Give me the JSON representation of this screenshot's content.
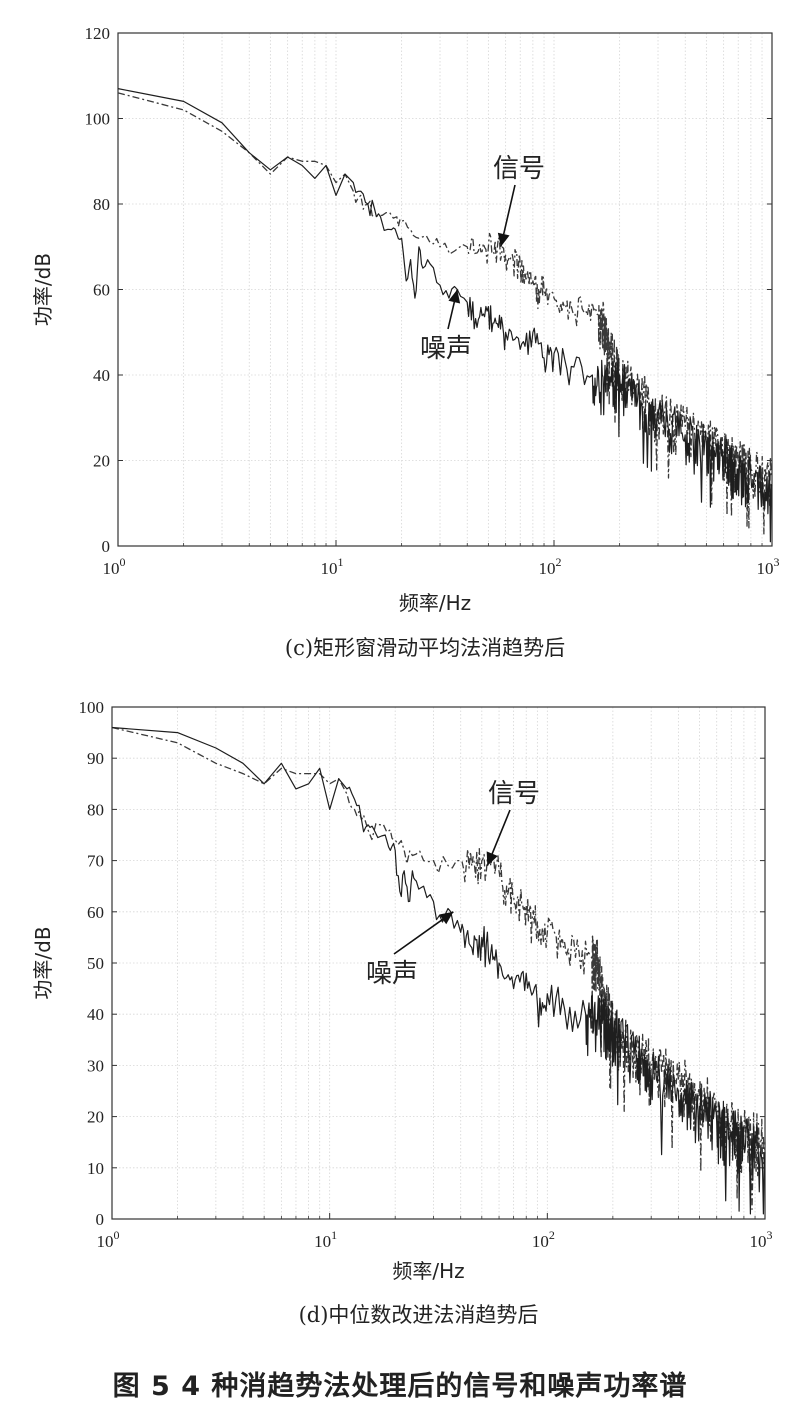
{
  "figure_caption": "图 5   4 种消趋势法处理后的信号和噪声功率谱",
  "chart_data": [
    {
      "type": "line",
      "caption": "(c)矩形窗滑动平均法消趋势后",
      "xlabel": "频率/Hz",
      "ylabel": "功率/dB",
      "xscale": "log",
      "xlim": [
        1,
        1000
      ],
      "ylim": [
        0,
        120
      ],
      "yticks": [
        0,
        20,
        40,
        60,
        80,
        100,
        120
      ],
      "xticks": [
        {
          "base": "10",
          "exp": "0"
        },
        {
          "base": "10",
          "exp": "1"
        },
        {
          "base": "10",
          "exp": "2"
        },
        {
          "base": "10",
          "exp": "3"
        }
      ],
      "grid": true,
      "annotations": [
        {
          "text": "信号",
          "pointTo": [
            57,
            70
          ]
        },
        {
          "text": "噪声",
          "pointTo": [
            36,
            60
          ]
        }
      ],
      "series": [
        {
          "style": "dashdot",
          "x": [
            1,
            2,
            3,
            4,
            5,
            6,
            7,
            8,
            9,
            10,
            11,
            12,
            13,
            14,
            15,
            17,
            19,
            20,
            22,
            24,
            27,
            30,
            35,
            40,
            45,
            50,
            55,
            60,
            65,
            70,
            75,
            80,
            85,
            90,
            100,
            110,
            120,
            140,
            160,
            170,
            180,
            200,
            250,
            300,
            400,
            500,
            600,
            700,
            800,
            1000
          ],
          "y": [
            106,
            102,
            97,
            92,
            87,
            91,
            90,
            90,
            89,
            85,
            87,
            83,
            82,
            80,
            77,
            78,
            77,
            76,
            74,
            72,
            71,
            70,
            69,
            70,
            69,
            70,
            70,
            68,
            67,
            66,
            63,
            62,
            60,
            60,
            58,
            57,
            56,
            55,
            54,
            52,
            47,
            40,
            36,
            32,
            28,
            25,
            22,
            20,
            18,
            16
          ]
        },
        {
          "style": "solid",
          "x": [
            1,
            2,
            3,
            4,
            5,
            6,
            7,
            8,
            9,
            10,
            11,
            12,
            13,
            14,
            15,
            16,
            18,
            19,
            20,
            21,
            22,
            23,
            24,
            25,
            27,
            30,
            33,
            36,
            40,
            45,
            50,
            55,
            60,
            70,
            80,
            90,
            100,
            120,
            150,
            180,
            200,
            250,
            300,
            400,
            500,
            600,
            700,
            800,
            1000
          ],
          "y": [
            107,
            104,
            99,
            92,
            88,
            91,
            89,
            86,
            89,
            82,
            87,
            85,
            83,
            80,
            79,
            77,
            74,
            73,
            72,
            62,
            67,
            58,
            70,
            65,
            66,
            61,
            58,
            60,
            57,
            53,
            56,
            52,
            50,
            46,
            50,
            44,
            45,
            42,
            40,
            38,
            40,
            34,
            30,
            26,
            24,
            21,
            18,
            16,
            14
          ]
        }
      ]
    },
    {
      "type": "line",
      "caption": "(d)中位数改进法消趋势后",
      "xlabel": "频率/Hz",
      "ylabel": "功率/dB",
      "xscale": "log",
      "xlim": [
        1,
        1000
      ],
      "ylim": [
        0,
        100
      ],
      "yticks": [
        0,
        10,
        20,
        30,
        40,
        50,
        60,
        70,
        80,
        90,
        100
      ],
      "xticks": [
        {
          "base": "10",
          "exp": "0"
        },
        {
          "base": "10",
          "exp": "1"
        },
        {
          "base": "10",
          "exp": "2"
        },
        {
          "base": "10",
          "exp": "3"
        }
      ],
      "grid": true,
      "annotations": [
        {
          "text": "信号",
          "pointTo": [
            53,
            69
          ]
        },
        {
          "text": "噪声",
          "pointTo": [
            37,
            60
          ]
        }
      ],
      "series": [
        {
          "style": "dashdot",
          "x": [
            1,
            2,
            3,
            4,
            5,
            6,
            7,
            8,
            9,
            10,
            11,
            12,
            13,
            14,
            15,
            17,
            19,
            20,
            22,
            24,
            27,
            30,
            35,
            40,
            45,
            50,
            55,
            60,
            65,
            70,
            75,
            80,
            85,
            90,
            100,
            110,
            120,
            140,
            160,
            170,
            180,
            200,
            250,
            300,
            400,
            500,
            600,
            700,
            800,
            1000
          ],
          "y": [
            96,
            93,
            89,
            87,
            85,
            88,
            87,
            87,
            87,
            85,
            86,
            83,
            80,
            78,
            76,
            77,
            76,
            74,
            72,
            71,
            70,
            70,
            69,
            70,
            69,
            70,
            69,
            68,
            65,
            63,
            62,
            61,
            58,
            58,
            56,
            55,
            54,
            52,
            51,
            50,
            44,
            38,
            33,
            30,
            27,
            24,
            21,
            19,
            17,
            15
          ]
        },
        {
          "style": "solid",
          "x": [
            1,
            2,
            3,
            4,
            5,
            6,
            7,
            8,
            9,
            10,
            11,
            12,
            13,
            14,
            15,
            16,
            18,
            19,
            20,
            21,
            22,
            23,
            24,
            25,
            27,
            30,
            33,
            36,
            40,
            45,
            50,
            55,
            60,
            70,
            80,
            90,
            100,
            120,
            150,
            180,
            200,
            250,
            300,
            400,
            500,
            600,
            700,
            800,
            1000
          ],
          "y": [
            96,
            95,
            92,
            89,
            85,
            89,
            84,
            85,
            88,
            80,
            86,
            84,
            82,
            78,
            77,
            76,
            75,
            72,
            72,
            64,
            68,
            62,
            68,
            66,
            65,
            62,
            58,
            60,
            56,
            53,
            55,
            52,
            50,
            45,
            48,
            42,
            44,
            41,
            40,
            39,
            38,
            32,
            28,
            25,
            22,
            19,
            17,
            15,
            13
          ]
        }
      ]
    }
  ]
}
